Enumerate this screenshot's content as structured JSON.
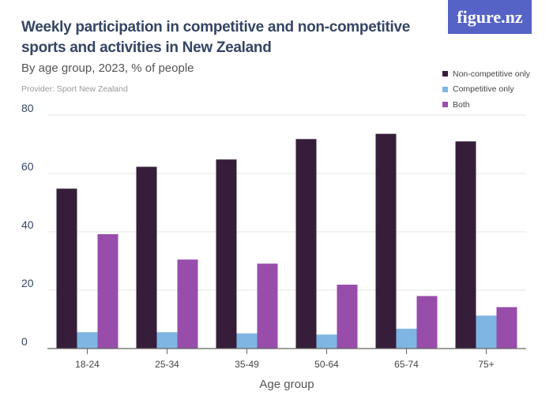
{
  "header": {
    "title": "Weekly participation in competitive and non-competitive sports and activities in New Zealand",
    "subtitle": "By age group, 2023, % of people",
    "provider": "Provider: Sport New Zealand",
    "logo": "figure.nz"
  },
  "chart_data": {
    "type": "bar",
    "title": "Weekly participation in competitive and non-competitive sports and activities in New Zealand",
    "xlabel": "Age group",
    "ylabel": "",
    "ylim": [
      0,
      80
    ],
    "yticks": [
      0,
      20,
      40,
      60,
      80
    ],
    "categories": [
      "18-24",
      "25-34",
      "35-49",
      "50-64",
      "65-74",
      "75+"
    ],
    "series": [
      {
        "name": "Non-competitive only",
        "color": "#361e3b",
        "values": [
          54.8,
          62.3,
          64.8,
          71.8,
          73.6,
          71.0
        ]
      },
      {
        "name": "Competitive only",
        "color": "#7fb5e3",
        "values": [
          5.6,
          5.6,
          5.2,
          4.8,
          6.8,
          11.3
        ]
      },
      {
        "name": "Both",
        "color": "#984dab",
        "values": [
          39.2,
          30.5,
          29.1,
          21.9,
          18.0,
          14.2
        ]
      }
    ],
    "legend": "top-right",
    "grid": true
  }
}
